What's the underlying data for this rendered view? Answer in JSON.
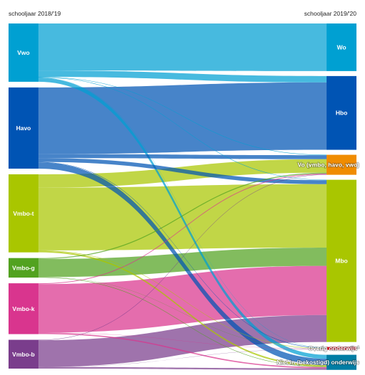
{
  "header": {
    "left_label": "schooljaar 2018/'19",
    "right_label": "schooljaar 2019/'20"
  },
  "sources": [
    {
      "id": "vwo",
      "label": "Vwo",
      "color": "#00a0d2"
    },
    {
      "id": "havo",
      "label": "Havo",
      "color": "#0054b4"
    },
    {
      "id": "vmbot",
      "label": "Vmbo-t",
      "color": "#a9c600"
    },
    {
      "id": "vmbog",
      "label": "Vmbo-g",
      "color": "#52a220"
    },
    {
      "id": "vmbok",
      "label": "Vmbo-k",
      "color": "#d9358e"
    },
    {
      "id": "vmbob",
      "label": "Vmbo-b",
      "color": "#7a3d8c"
    }
  ],
  "targets": [
    {
      "id": "wo",
      "label": "Wo",
      "color": "#00a0d2"
    },
    {
      "id": "hbo",
      "label": "Hbo",
      "color": "#0054b4"
    },
    {
      "id": "vo",
      "label": "Vo (vmbo, havo, vwo)",
      "color": "#f08c00"
    },
    {
      "id": "mbo",
      "label": "Mbo",
      "color": "#a9c600"
    },
    {
      "id": "overig",
      "label": "Overig onderwijs¹",
      "color": "#e2172b"
    },
    {
      "id": "niet",
      "label": "Niet in (bekostigd) onderwijs",
      "color": "#007da4"
    }
  ],
  "flows": [
    {
      "from": "vwo",
      "to": "wo",
      "value": 60
    },
    {
      "from": "vwo",
      "to": "hbo",
      "value": 8
    },
    {
      "from": "vwo",
      "to": "vo",
      "value": 0.5
    },
    {
      "from": "vwo",
      "to": "mbo",
      "value": 0.5
    },
    {
      "from": "vwo",
      "to": "overig",
      "value": 0.3
    },
    {
      "from": "vwo",
      "to": "niet",
      "value": 5
    },
    {
      "from": "havo",
      "to": "hbo",
      "value": 85
    },
    {
      "from": "havo",
      "to": "vo",
      "value": 5
    },
    {
      "from": "havo",
      "to": "mbo",
      "value": 5
    },
    {
      "from": "havo",
      "to": "overig",
      "value": 0.5
    },
    {
      "from": "havo",
      "to": "niet",
      "value": 8
    },
    {
      "from": "vmbot",
      "to": "vo",
      "value": 17
    },
    {
      "from": "vmbot",
      "to": "mbo",
      "value": 80
    },
    {
      "from": "vmbot",
      "to": "overig",
      "value": 0.5
    },
    {
      "from": "vmbot",
      "to": "niet",
      "value": 2
    },
    {
      "from": "vmbog",
      "to": "vo",
      "value": 1.2
    },
    {
      "from": "vmbog",
      "to": "mbo",
      "value": 23
    },
    {
      "from": "vmbog",
      "to": "overig",
      "value": 0.2
    },
    {
      "from": "vmbog",
      "to": "niet",
      "value": 0.5
    },
    {
      "from": "vmbok",
      "to": "vo",
      "value": 1
    },
    {
      "from": "vmbok",
      "to": "mbo",
      "value": 62
    },
    {
      "from": "vmbok",
      "to": "overig",
      "value": 0.3
    },
    {
      "from": "vmbok",
      "to": "niet",
      "value": 1.5
    },
    {
      "from": "vmbob",
      "to": "vo",
      "value": 0.5
    },
    {
      "from": "vmbob",
      "to": "mbo",
      "value": 34
    },
    {
      "from": "vmbob",
      "to": "overig",
      "value": 0.2
    },
    {
      "from": "vmbob",
      "to": "niet",
      "value": 2
    }
  ]
}
